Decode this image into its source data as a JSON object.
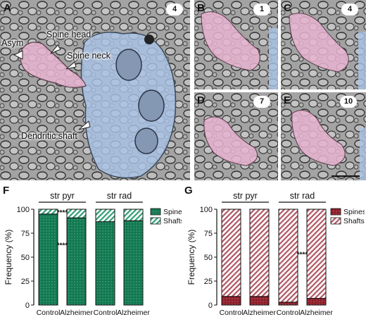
{
  "panels": {
    "A": {
      "label": "A",
      "section_number": "4",
      "annotations": {
        "asym": "Asym",
        "spine_head": "Spine head",
        "spine_neck": "Spine neck",
        "dendritic_shaft": "Dendritic shaft"
      }
    },
    "B": {
      "label": "B",
      "section_number": "1"
    },
    "C": {
      "label": "C",
      "section_number": "4"
    },
    "D": {
      "label": "D",
      "section_number": "7"
    },
    "E": {
      "label": "E",
      "section_number": "10"
    },
    "F": {
      "label": "F"
    },
    "G": {
      "label": "G"
    }
  },
  "colors": {
    "pink_overlay": "#e8b4d0",
    "blue_overlay": "#a9c3e6",
    "spines_F": "#127a52",
    "shafts_F": "#2e9e74",
    "spines_G": "#8e1f2a",
    "shafts_G": "#b05562"
  },
  "chart_data": [
    {
      "type": "bar",
      "stacked": true,
      "group_labels": [
        "str pyr",
        "str rad"
      ],
      "categories": [
        "Control",
        "Alzheimer",
        "Control",
        "Alzheimer"
      ],
      "ylabel": "Frequency (%)",
      "ylim": [
        0,
        100
      ],
      "yticks": [
        0,
        25,
        50,
        75,
        100
      ],
      "legend_position": "right",
      "series": [
        {
          "name": "Spines",
          "values": [
            95,
            91,
            87,
            88
          ]
        },
        {
          "name": "Shafts",
          "values": [
            5,
            9,
            13,
            12
          ]
        }
      ],
      "significance": [
        {
          "label": "****",
          "between": [
            0,
            1
          ],
          "at": "top"
        },
        {
          "label": "****",
          "between": [
            0,
            1
          ],
          "at": "middle"
        }
      ]
    },
    {
      "type": "bar",
      "stacked": true,
      "group_labels": [
        "str pyr",
        "str rad"
      ],
      "categories": [
        "Control",
        "Alzheimer",
        "Control",
        "Alzheimer"
      ],
      "ylabel": "Frequency (%)",
      "ylim": [
        0,
        100
      ],
      "yticks": [
        0,
        25,
        50,
        75,
        100
      ],
      "legend_position": "top-right",
      "series": [
        {
          "name": "Spines",
          "values": [
            9,
            9,
            3,
            7
          ]
        },
        {
          "name": "Shafts",
          "values": [
            91,
            91,
            97,
            93
          ]
        }
      ],
      "significance": [
        {
          "label": "****",
          "between": [
            2,
            3
          ],
          "at": "top"
        }
      ]
    }
  ]
}
